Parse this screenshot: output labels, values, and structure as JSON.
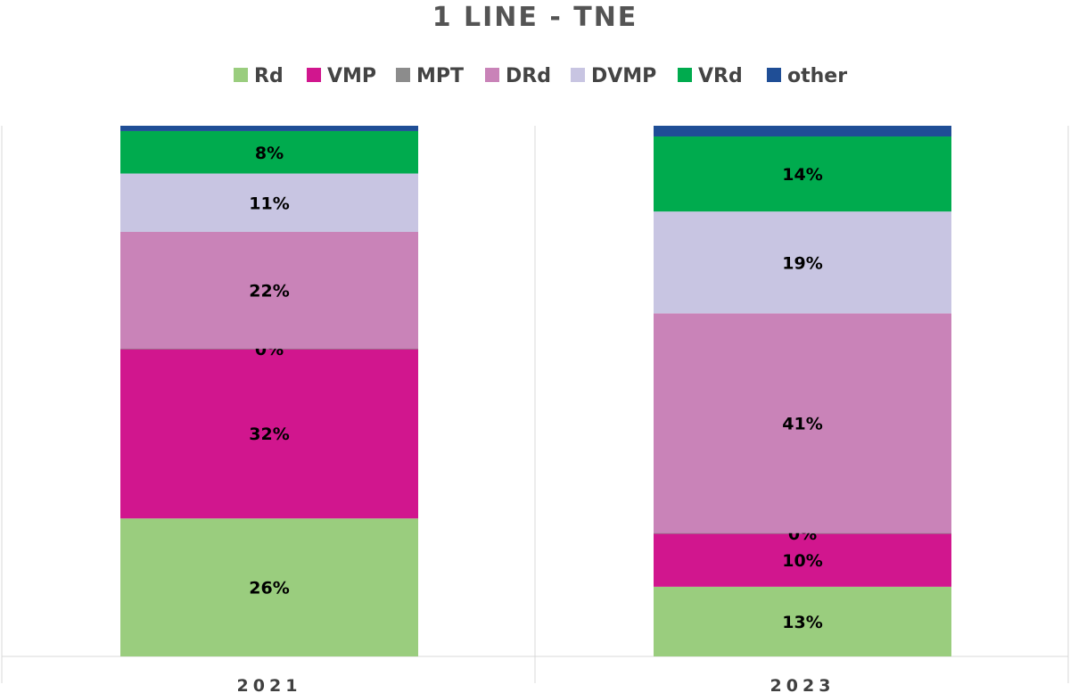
{
  "chart_data": {
    "type": "bar",
    "stacked": true,
    "title": "1 LINE - TNE",
    "xlabel": "",
    "ylabel": "",
    "ylim": [
      0,
      100
    ],
    "grid": false,
    "legend_position": "top",
    "categories": [
      "2021",
      "2023"
    ],
    "series": [
      {
        "name": "Rd",
        "color": "#9acd7e",
        "values": [
          26,
          13
        ],
        "labels": [
          "26%",
          "13%"
        ]
      },
      {
        "name": "VMP",
        "color": "#d1168e",
        "values": [
          32,
          10
        ],
        "labels": [
          "32%",
          "10%"
        ]
      },
      {
        "name": "MPT",
        "color": "#8c8c8c",
        "values": [
          0,
          0
        ],
        "labels": [
          "0%",
          "0%"
        ]
      },
      {
        "name": "DRd",
        "color": "#c983b8",
        "values": [
          22,
          41
        ],
        "labels": [
          "22%",
          "41%"
        ]
      },
      {
        "name": "DVMP",
        "color": "#c8c5e2",
        "values": [
          11,
          19
        ],
        "labels": [
          "11%",
          "19%"
        ]
      },
      {
        "name": "VRd",
        "color": "#00ab4e",
        "values": [
          8,
          14
        ],
        "labels": [
          "8%",
          "14%"
        ]
      },
      {
        "name": "other",
        "color": "#1f4e96",
        "values": [
          1,
          2
        ],
        "labels": [
          null,
          null
        ]
      }
    ]
  }
}
